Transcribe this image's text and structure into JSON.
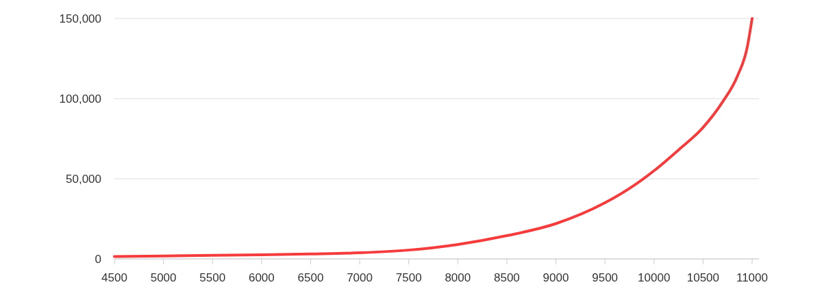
{
  "chart_data": {
    "type": "line",
    "x": [
      4500,
      5000,
      5500,
      6000,
      6500,
      7000,
      7500,
      8000,
      8500,
      9000,
      9500,
      9800,
      10000,
      10250,
      10500,
      10700,
      10850,
      10950,
      11000
    ],
    "series": [
      {
        "color": "#f53b3b",
        "values": [
          1500,
          1800,
          2200,
          2600,
          3100,
          3800,
          5500,
          9000,
          14500,
          22000,
          35000,
          46000,
          55000,
          68000,
          82000,
          98000,
          114000,
          132000,
          150000
        ]
      }
    ],
    "xlim": [
      4500,
      11070
    ],
    "xticks": [
      4500,
      5000,
      5500,
      6000,
      6500,
      7000,
      7500,
      8000,
      8500,
      9000,
      9500,
      10000,
      10500,
      11000
    ],
    "ylim": [
      0,
      150000
    ],
    "yticks": [
      {
        "value": 0,
        "label": "0"
      },
      {
        "value": 50000,
        "label": "50,000"
      },
      {
        "value": 100000,
        "label": "100,000"
      },
      {
        "value": 150000,
        "label": "150,000"
      }
    ],
    "grid": "y",
    "line_style": "solid",
    "marker": "none"
  }
}
